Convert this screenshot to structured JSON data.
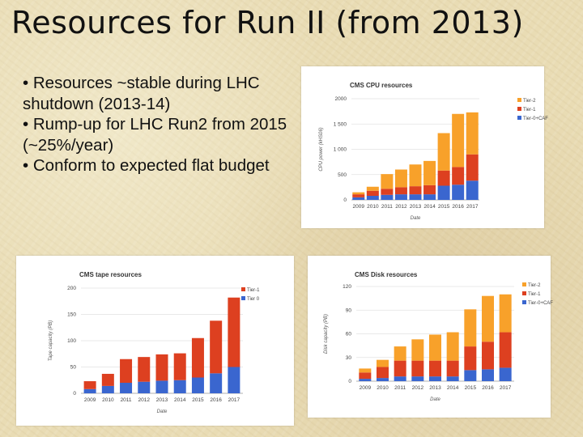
{
  "slide": {
    "title": "Resources for Run II (from 2013)",
    "bullets": [
      "• Resources ~stable during LHC shutdown (2013-14)",
      "• Rump-up for LHC Run2 from 2015 (~25%/year)",
      "• Conform to expected flat budget"
    ]
  },
  "colors": {
    "tier2": "#f8a12a",
    "tier1": "#dd4020",
    "tier0": "#3a66cf"
  },
  "chart_data": [
    {
      "type": "bar",
      "stacked": true,
      "title": "CMS CPU resources",
      "xlabel": "Date",
      "ylabel": "CPU power (kHS06)",
      "ylim": [
        0,
        2000
      ],
      "yticks": [
        "0",
        "500",
        "1 000",
        "1 500",
        "2000"
      ],
      "categories": [
        "2009",
        "2010",
        "2011",
        "2012",
        "2013",
        "2014",
        "2015",
        "2016",
        "2017"
      ],
      "legend_position": "top-right",
      "series": [
        {
          "name": "Tier-0+CAF",
          "color": "#3a66cf",
          "values": [
            50,
            80,
            100,
            110,
            110,
            110,
            280,
            300,
            380
          ]
        },
        {
          "name": "Tier-1",
          "color": "#dd4020",
          "values": [
            60,
            100,
            120,
            140,
            160,
            180,
            300,
            350,
            520
          ]
        },
        {
          "name": "Tier-2",
          "color": "#f8a12a",
          "values": [
            40,
            80,
            290,
            350,
            430,
            480,
            740,
            1050,
            830
          ]
        }
      ]
    },
    {
      "type": "bar",
      "stacked": true,
      "title": "CMS tape resources",
      "xlabel": "Date",
      "ylabel": "Tape capacity (PB)",
      "ylim": [
        0,
        200
      ],
      "yticks": [
        "0",
        "50",
        "100",
        "150",
        "200"
      ],
      "categories": [
        "2009",
        "2010",
        "2011",
        "2012",
        "2013",
        "2014",
        "2015",
        "2016",
        "2017"
      ],
      "legend_position": "top-right",
      "series": [
        {
          "name": "Tier 0",
          "color": "#3a66cf",
          "values": [
            8,
            14,
            20,
            22,
            24,
            25,
            30,
            38,
            50
          ]
        },
        {
          "name": "Tier-1",
          "color": "#dd4020",
          "values": [
            15,
            23,
            45,
            47,
            50,
            51,
            75,
            100,
            132
          ]
        }
      ]
    },
    {
      "type": "bar",
      "stacked": true,
      "title": "CMS Disk resources",
      "xlabel": "Date",
      "ylabel": "Disk capacity (PB)",
      "ylim": [
        0,
        120
      ],
      "yticks": [
        "0",
        "30",
        "60",
        "90",
        "120"
      ],
      "categories": [
        "2009",
        "2010",
        "2011",
        "2012",
        "2013",
        "2014",
        "2015",
        "2016",
        "2017"
      ],
      "legend_position": "top-right",
      "series": [
        {
          "name": "Tier-0+CAF",
          "color": "#3a66cf",
          "values": [
            3,
            4,
            6,
            6,
            6,
            6,
            14,
            15,
            17
          ]
        },
        {
          "name": "Tier-1",
          "color": "#dd4020",
          "values": [
            8,
            14,
            20,
            20,
            20,
            20,
            30,
            35,
            45
          ]
        },
        {
          "name": "Tier-2",
          "color": "#f8a12a",
          "values": [
            5,
            9,
            18,
            27,
            33,
            36,
            47,
            58,
            48
          ]
        }
      ]
    }
  ]
}
